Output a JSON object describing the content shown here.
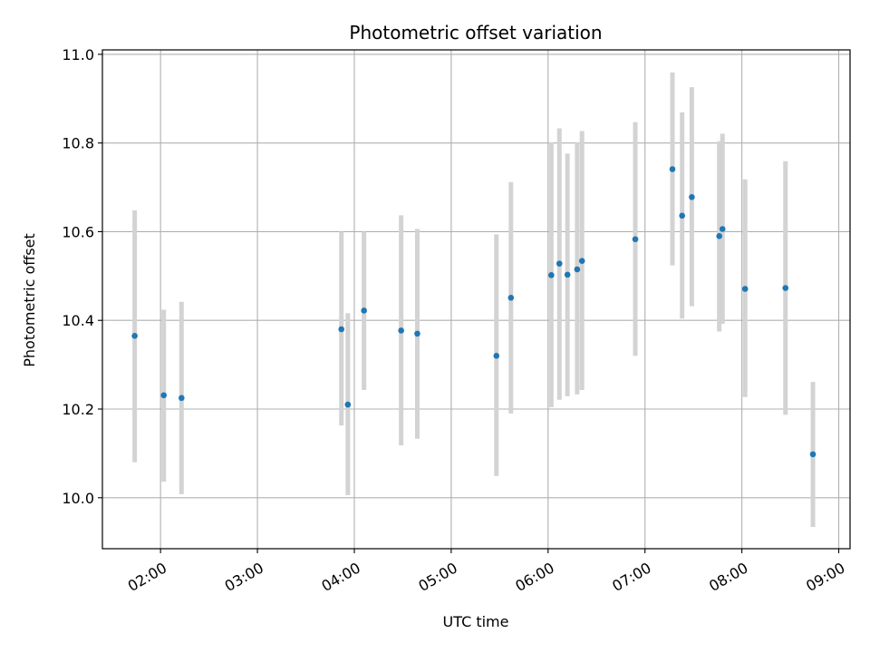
{
  "chart_data": {
    "type": "scatter",
    "title": "Photometric offset variation",
    "xlabel": "UTC time",
    "ylabel": "Photometric offset",
    "x_axis": "time (HH:MM, UTC)",
    "xlim": [
      "01:24",
      "09:07"
    ],
    "ylim": [
      9.885,
      11.01
    ],
    "xticks": [
      "02:00",
      "03:00",
      "04:00",
      "05:00",
      "06:00",
      "07:00",
      "08:00",
      "09:00"
    ],
    "yticks": [
      10.0,
      10.2,
      10.4,
      10.6,
      10.8,
      11.0
    ],
    "grid": true,
    "point_color": "#1f77b4",
    "errorbar_color": "#d3d3d3",
    "series": [
      {
        "points": [
          {
            "x": "01:44",
            "y": 10.365,
            "ylow": 10.08,
            "yhigh": 10.648
          },
          {
            "x": "02:02",
            "y": 10.231,
            "ylow": 10.036,
            "yhigh": 10.424
          },
          {
            "x": "02:13",
            "y": 10.225,
            "ylow": 10.008,
            "yhigh": 10.442
          },
          {
            "x": "03:52",
            "y": 10.38,
            "ylow": 10.163,
            "yhigh": 10.6
          },
          {
            "x": "03:56",
            "y": 10.21,
            "ylow": 10.006,
            "yhigh": 10.416
          },
          {
            "x": "04:06",
            "y": 10.422,
            "ylow": 10.243,
            "yhigh": 10.6
          },
          {
            "x": "04:29",
            "y": 10.377,
            "ylow": 10.118,
            "yhigh": 10.637
          },
          {
            "x": "04:39",
            "y": 10.37,
            "ylow": 10.133,
            "yhigh": 10.606
          },
          {
            "x": "05:28",
            "y": 10.32,
            "ylow": 10.049,
            "yhigh": 10.594
          },
          {
            "x": "05:37",
            "y": 10.451,
            "ylow": 10.19,
            "yhigh": 10.712
          },
          {
            "x": "06:02",
            "y": 10.502,
            "ylow": 10.204,
            "yhigh": 10.802
          },
          {
            "x": "06:07",
            "y": 10.528,
            "ylow": 10.221,
            "yhigh": 10.833
          },
          {
            "x": "06:12",
            "y": 10.503,
            "ylow": 10.229,
            "yhigh": 10.776
          },
          {
            "x": "06:18",
            "y": 10.515,
            "ylow": 10.233,
            "yhigh": 10.802
          },
          {
            "x": "06:21",
            "y": 10.534,
            "ylow": 10.243,
            "yhigh": 10.827
          },
          {
            "x": "06:54",
            "y": 10.583,
            "ylow": 10.32,
            "yhigh": 10.847
          },
          {
            "x": "07:17",
            "y": 10.741,
            "ylow": 10.524,
            "yhigh": 10.959
          },
          {
            "x": "07:23",
            "y": 10.636,
            "ylow": 10.404,
            "yhigh": 10.869
          },
          {
            "x": "07:29",
            "y": 10.678,
            "ylow": 10.432,
            "yhigh": 10.926
          },
          {
            "x": "07:46",
            "y": 10.59,
            "ylow": 10.375,
            "yhigh": 10.804
          },
          {
            "x": "07:48",
            "y": 10.606,
            "ylow": 10.392,
            "yhigh": 10.821
          },
          {
            "x": "08:02",
            "y": 10.471,
            "ylow": 10.227,
            "yhigh": 10.718
          },
          {
            "x": "08:27",
            "y": 10.473,
            "ylow": 10.187,
            "yhigh": 10.759
          },
          {
            "x": "08:44",
            "y": 10.098,
            "ylow": 9.934,
            "yhigh": 10.261
          }
        ]
      }
    ]
  }
}
